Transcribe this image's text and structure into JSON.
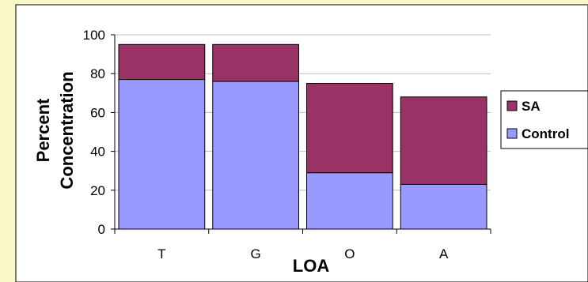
{
  "chart_data": {
    "type": "bar",
    "stacked": true,
    "categories": [
      "T",
      "G",
      "O",
      "A"
    ],
    "series": [
      {
        "name": "Control",
        "values": [
          77,
          76,
          29,
          23
        ],
        "color": "#9999ff"
      },
      {
        "name": "SA",
        "values": [
          18,
          19,
          46,
          45
        ],
        "color": "#993366"
      }
    ],
    "title": "",
    "xlabel": "LOA",
    "ylabel": "Percent Concentration",
    "ylabel_lines": [
      "Percent",
      "Concentration"
    ],
    "ylim": [
      0,
      100
    ],
    "yticks": [
      0,
      20,
      40,
      60,
      80,
      100
    ],
    "grid": true,
    "legend_position": "right"
  },
  "legend_order": [
    "SA",
    "Control"
  ],
  "colors": {
    "page_background": "#f7f7c8",
    "plot_background": "#ffffff",
    "frame": "#000000"
  }
}
